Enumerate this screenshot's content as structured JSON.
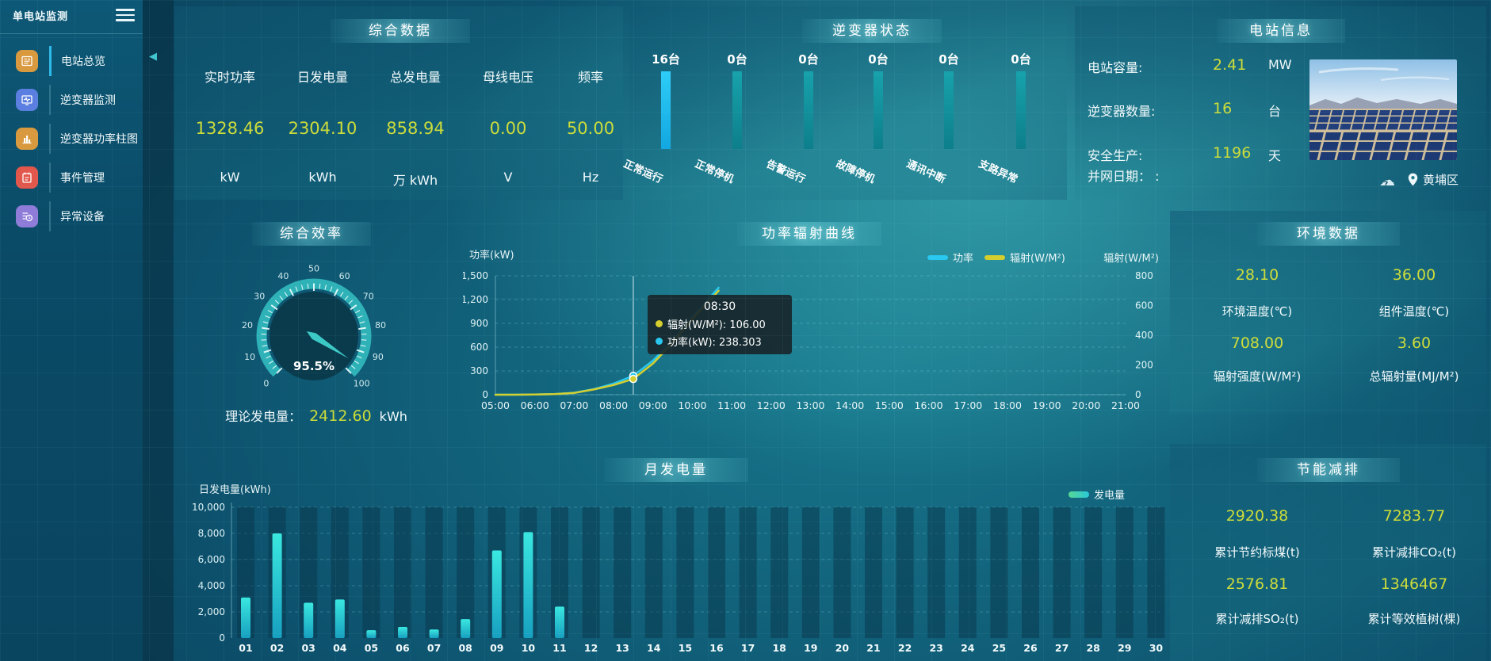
{
  "app": {
    "title": "单电站监测"
  },
  "sidebar": {
    "items": [
      {
        "label": "电站总览",
        "icon": "overview-icon",
        "color": "#d9993f",
        "active": true
      },
      {
        "label": "逆变器监测",
        "icon": "inverter-monitor-icon",
        "color": "#5b7fe0",
        "active": false
      },
      {
        "label": "逆变器功率柱图",
        "icon": "power-bar-icon",
        "color": "#d9993f",
        "active": false
      },
      {
        "label": "事件管理",
        "icon": "event-icon",
        "color": "#e2574c",
        "active": false
      },
      {
        "label": "异常设备",
        "icon": "abnormal-device-icon",
        "color": "#8f7cd9",
        "active": false
      }
    ]
  },
  "summary": {
    "title": "综合数据",
    "metrics": [
      {
        "label": "实时功率",
        "value": "1328.46",
        "unit": "kW"
      },
      {
        "label": "日发电量",
        "value": "2304.10",
        "unit": "kWh"
      },
      {
        "label": "总发电量",
        "value": "858.94",
        "unit": "万 kWh"
      },
      {
        "label": "母线电压",
        "value": "0.00",
        "unit": "V"
      },
      {
        "label": "频率",
        "value": "50.00",
        "unit": "Hz"
      }
    ]
  },
  "station": {
    "title": "电站信息",
    "rows": [
      {
        "label": "电站容量:",
        "value": "2.41",
        "unit": "MW"
      },
      {
        "label": "逆变器数量:",
        "value": "16",
        "unit": "台"
      },
      {
        "label": "安全生产:",
        "value": "1196",
        "unit": "天"
      },
      {
        "label": "并网日期： :",
        "value": "",
        "unit": ""
      }
    ],
    "location": "黄埔区"
  },
  "efficiency": {
    "title": "综合效率",
    "percent": "95.5%",
    "theory_label": "理论发电量：",
    "theory_value": "2412.60",
    "theory_unit": "kWh"
  },
  "environment": {
    "title": "环境数据",
    "cells": [
      {
        "value": "28.10",
        "label": "环境温度(℃)"
      },
      {
        "value": "36.00",
        "label": "组件温度(℃)"
      },
      {
        "value": "708.00",
        "label": "辐射强度(W/M²)"
      },
      {
        "value": "3.60",
        "label": "总辐射量(MJ/M²)"
      }
    ]
  },
  "saving": {
    "title": "节能减排",
    "cells": [
      {
        "value": "2920.38",
        "label": "累计节约标煤(t)"
      },
      {
        "value": "7283.77",
        "label": "累计减排CO₂(t)"
      },
      {
        "value": "2576.81",
        "label": "累计减排SO₂(t)"
      },
      {
        "value": "1346467",
        "label": "累计等效植树(棵)"
      }
    ]
  },
  "colors": {
    "value_accent": "#ccdc3a",
    "bar_active": "#1fc0f2",
    "bar_idle": "#12919c",
    "power_line": "#29c8f0",
    "radiation_line": "#d4cf2e",
    "monthly_bar_top": "#3ae8e0",
    "monthly_bar_bottom": "#17a0c0"
  },
  "chart_data": [
    {
      "id": "inverter_status",
      "type": "bar",
      "title": "逆变器状态",
      "categories": [
        "正常运行",
        "正常停机",
        "告警运行",
        "故障停机",
        "通讯中断",
        "支路异常"
      ],
      "values": [
        16,
        0,
        0,
        0,
        0,
        0
      ],
      "unit": "台",
      "count_labels": [
        "16台",
        "0台",
        "0台",
        "0台",
        "0台",
        "0台"
      ],
      "display": "equal-height",
      "bar_colors": [
        "#1fc0f2",
        "#12919c",
        "#12919c",
        "#12919c",
        "#12919c",
        "#12919c"
      ]
    },
    {
      "id": "power_radiation",
      "type": "line",
      "title": "功率辐射曲线",
      "x_ticks": [
        "05:00",
        "06:00",
        "07:00",
        "08:00",
        "09:00",
        "10:00",
        "11:00",
        "12:00",
        "13:00",
        "14:00",
        "15:00",
        "16:00",
        "17:00",
        "18:00",
        "19:00",
        "20:00",
        "21:00"
      ],
      "y_left": {
        "label": "功率(kW)",
        "min": 0,
        "max": 1500,
        "ticks": [
          0,
          300,
          600,
          900,
          1200,
          1500
        ]
      },
      "y_right": {
        "label": "辐射(W/M²)",
        "min": 0,
        "max": 800,
        "ticks": [
          0,
          200,
          400,
          600,
          800
        ]
      },
      "grid": true,
      "legend_position": "top-right",
      "series": [
        {
          "name": "功率",
          "axis": "left",
          "color": "#29c8f0",
          "points": [
            [
              "05:00",
              0
            ],
            [
              "05:30",
              0
            ],
            [
              "06:00",
              2
            ],
            [
              "06:30",
              8
            ],
            [
              "07:00",
              25
            ],
            [
              "07:30",
              70
            ],
            [
              "08:00",
              140
            ],
            [
              "08:30",
              238.303
            ],
            [
              "09:00",
              430
            ],
            [
              "09:30",
              680
            ],
            [
              "10:00",
              980
            ],
            [
              "10:40",
              1350
            ]
          ]
        },
        {
          "name": "辐射(W/M²)",
          "axis": "right",
          "color": "#d4cf2e",
          "points": [
            [
              "05:00",
              0
            ],
            [
              "05:30",
              0
            ],
            [
              "06:00",
              1
            ],
            [
              "06:30",
              4
            ],
            [
              "07:00",
              12
            ],
            [
              "07:30",
              35
            ],
            [
              "08:00",
              65
            ],
            [
              "08:30",
              106
            ],
            [
              "09:00",
              210
            ],
            [
              "09:30",
              350
            ],
            [
              "10:00",
              510
            ],
            [
              "10:40",
              700
            ]
          ]
        }
      ],
      "hover": {
        "x": "08:30"
      },
      "tooltip": {
        "time": "08:30",
        "entries": [
          {
            "name": "辐射(W/M²)",
            "value": "106.00",
            "color": "#d4cf2e"
          },
          {
            "name": "功率(kW)",
            "value": "238.303",
            "color": "#29c8f0"
          }
        ]
      }
    },
    {
      "id": "monthly_generation",
      "type": "bar",
      "title": "月发电量",
      "ylabel": "日发电量(kWh)",
      "ylim": [
        0,
        10000
      ],
      "y_ticks": [
        0,
        2000,
        4000,
        6000,
        8000,
        10000
      ],
      "legend": "发电量",
      "categories": [
        "01",
        "02",
        "03",
        "04",
        "05",
        "06",
        "07",
        "08",
        "09",
        "10",
        "11",
        "12",
        "13",
        "14",
        "15",
        "16",
        "17",
        "18",
        "19",
        "20",
        "21",
        "22",
        "23",
        "24",
        "25",
        "26",
        "27",
        "28",
        "29",
        "30"
      ],
      "values": [
        3100,
        8000,
        2700,
        2950,
        600,
        850,
        650,
        1450,
        6700,
        8100,
        2400,
        0,
        0,
        0,
        0,
        0,
        0,
        0,
        0,
        0,
        0,
        0,
        0,
        0,
        0,
        0,
        0,
        0,
        0,
        0
      ]
    },
    {
      "id": "efficiency_gauge",
      "type": "gauge",
      "min": 0,
      "max": 100,
      "tick_step": 10,
      "value": 95.5,
      "label": "95.5%"
    }
  ]
}
